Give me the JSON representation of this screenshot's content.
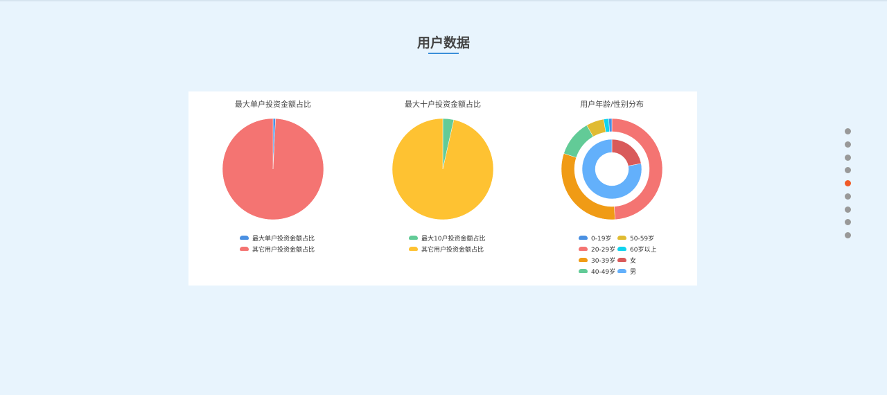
{
  "page": {
    "title": "用户数据"
  },
  "nav_dots": {
    "count": 9,
    "active_index": 4,
    "colors": {
      "inactive": "#999999",
      "active": "#f05a28"
    }
  },
  "chart_data": [
    {
      "type": "pie",
      "title": "最大单户投资金额占比",
      "slices": [
        {
          "name": "最大单户投资金额占比",
          "value": 0.8,
          "color": "#4a90e2"
        },
        {
          "name": "其它用户投资金额占比",
          "value": 99.2,
          "color": "#f47472"
        }
      ]
    },
    {
      "type": "pie",
      "title": "最大十户投资金额占比",
      "slices": [
        {
          "name": "最大10户投资金额占比",
          "value": 3.5,
          "color": "#62cb97"
        },
        {
          "name": "其它用户投资金额占比",
          "value": 96.5,
          "color": "#fec232"
        }
      ]
    },
    {
      "type": "pie",
      "title": "用户年龄/性别分布",
      "outer": [
        {
          "name": "0-19岁",
          "value": 1.0,
          "color": "#4a90e2"
        },
        {
          "name": "20-29岁",
          "value": 49,
          "color": "#f47472"
        },
        {
          "name": "30-39岁",
          "value": 31,
          "color": "#f09b15"
        },
        {
          "name": "40-49岁",
          "value": 11.7,
          "color": "#62cb97"
        },
        {
          "name": "50-59岁",
          "value": 5.7,
          "color": "#e0bb32"
        },
        {
          "name": "60岁以上",
          "value": 1.6,
          "color": "#0fd3ee"
        }
      ],
      "inner": [
        {
          "name": "女",
          "value": 22,
          "color": "#d95a5a"
        },
        {
          "name": "男",
          "value": 78,
          "color": "#63b0fb"
        }
      ]
    }
  ]
}
